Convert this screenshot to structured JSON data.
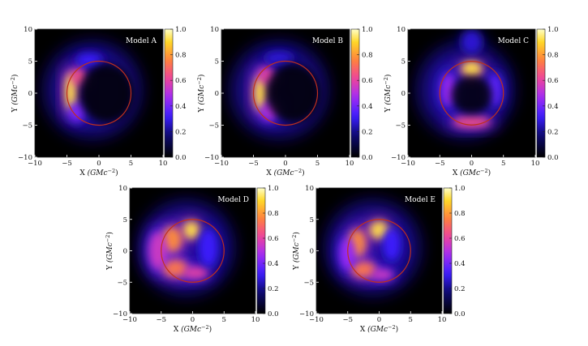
{
  "figure": {
    "type": "image-panels",
    "colormap": "gnuplot2 (black-blue-magenta-orange-yellow)",
    "ring_color": "#c0301c",
    "panels": [
      {
        "label": "Model A",
        "x_label_var": "X",
        "y_label_var": "Y",
        "axis_unit": "(GMc",
        "axis_unit_exp": "−2",
        "axis_unit_close": ")",
        "xlim": [
          -10,
          10
        ],
        "ylim": [
          -10,
          10
        ],
        "x_ticks": [
          "−10",
          "−5",
          "0",
          "5",
          "10"
        ],
        "y_ticks": [
          "10",
          "5",
          "0",
          "−5",
          "−10"
        ],
        "colorbar_ticks": [
          "1.0",
          "0.8",
          "0.6",
          "0.4",
          "0.2",
          "0.0"
        ],
        "ring_radius": 5,
        "emission": [
          {
            "x": -4.4,
            "y": 0.2,
            "rx": 0.9,
            "ry": 3.0,
            "level": 1.0
          },
          {
            "x": -3.2,
            "y": 2.6,
            "rx": 1.2,
            "ry": 1.4,
            "level": 0.7
          },
          {
            "x": -1.5,
            "y": 5.2,
            "rx": 2.0,
            "ry": 1.0,
            "level": 0.35
          },
          {
            "x": -3.5,
            "y": -3.0,
            "rx": 1.3,
            "ry": 1.5,
            "level": 0.45
          }
        ]
      },
      {
        "label": "Model B",
        "x_label_var": "X",
        "y_label_var": "Y",
        "axis_unit": "(GMc",
        "axis_unit_exp": "−2",
        "axis_unit_close": ")",
        "xlim": [
          -10,
          10
        ],
        "ylim": [
          -10,
          10
        ],
        "x_ticks": [
          "−10",
          "−5",
          "0",
          "5",
          "10"
        ],
        "y_ticks": [
          "10",
          "5",
          "0",
          "−5",
          "−10"
        ],
        "colorbar_ticks": [
          "1.0",
          "0.8",
          "0.6",
          "0.4",
          "0.2",
          "0.0"
        ],
        "ring_radius": 5,
        "emission": [
          {
            "x": -3.9,
            "y": 0.0,
            "rx": 1.0,
            "ry": 2.7,
            "level": 1.0
          },
          {
            "x": -3.0,
            "y": 2.8,
            "rx": 1.3,
            "ry": 1.4,
            "level": 0.65
          },
          {
            "x": -2.5,
            "y": -2.8,
            "rx": 1.4,
            "ry": 1.5,
            "level": 0.55
          },
          {
            "x": -1.0,
            "y": 5.5,
            "rx": 2.2,
            "ry": 1.0,
            "level": 0.3
          }
        ]
      },
      {
        "label": "Model C",
        "x_label_var": "X",
        "y_label_var": "Y",
        "axis_unit": "(GMc",
        "axis_unit_exp": "−2",
        "axis_unit_close": ")",
        "xlim": [
          -10,
          10
        ],
        "ylim": [
          -10,
          10
        ],
        "x_ticks": [
          "−10",
          "−5",
          "0",
          "5",
          "10"
        ],
        "y_ticks": [
          "10",
          "5",
          "0",
          "−5",
          "−10"
        ],
        "colorbar_ticks": [
          "1.0",
          "0.8",
          "0.6",
          "0.4",
          "0.2",
          "0.0"
        ],
        "ring_radius": 5,
        "emission": [
          {
            "x": 0.0,
            "y": 3.8,
            "rx": 1.6,
            "ry": 1.2,
            "level": 1.0
          },
          {
            "x": 0.0,
            "y": -4.5,
            "rx": 3.0,
            "ry": 0.9,
            "level": 0.7
          },
          {
            "x": -3.6,
            "y": 0.5,
            "rx": 1.2,
            "ry": 2.6,
            "level": 0.5
          },
          {
            "x": 3.6,
            "y": 0.5,
            "rx": 1.2,
            "ry": 2.6,
            "level": 0.4
          },
          {
            "x": 0.0,
            "y": 8.0,
            "rx": 1.6,
            "ry": 1.8,
            "level": 0.3
          }
        ]
      },
      {
        "label": "Model D",
        "x_label_var": "X",
        "y_label_var": "Y",
        "axis_unit": "(GMc",
        "axis_unit_exp": "−2",
        "axis_unit_close": ")",
        "xlim": [
          -10,
          10
        ],
        "ylim": [
          -10,
          10
        ],
        "x_ticks": [
          "−10",
          "−5",
          "0",
          "5",
          "10"
        ],
        "y_ticks": [
          "10",
          "5",
          "0",
          "−5",
          "−10"
        ],
        "colorbar_ticks": [
          "1.0",
          "0.8",
          "0.6",
          "0.4",
          "0.2",
          "0.0"
        ],
        "ring_radius": 5,
        "emission": [
          {
            "x": -0.2,
            "y": 3.3,
            "rx": 1.3,
            "ry": 1.4,
            "level": 1.0
          },
          {
            "x": -3.3,
            "y": 1.8,
            "rx": 1.6,
            "ry": 2.0,
            "level": 0.85
          },
          {
            "x": -2.8,
            "y": -2.8,
            "rx": 2.0,
            "ry": 1.4,
            "level": 0.8
          },
          {
            "x": 0.5,
            "y": -3.5,
            "rx": 2.0,
            "ry": 1.0,
            "level": 0.65
          },
          {
            "x": -5.5,
            "y": 0.0,
            "rx": 1.5,
            "ry": 3.0,
            "level": 0.6
          },
          {
            "x": 2.5,
            "y": 0.5,
            "rx": 1.5,
            "ry": 3.0,
            "level": 0.35
          }
        ]
      },
      {
        "label": "Model E",
        "x_label_var": "X",
        "y_label_var": "Y",
        "axis_unit": "(GMc",
        "axis_unit_exp": "−2",
        "axis_unit_close": ")",
        "xlim": [
          -10,
          10
        ],
        "ylim": [
          -10,
          10
        ],
        "x_ticks": [
          "−10",
          "−5",
          "0",
          "5",
          "10"
        ],
        "y_ticks": [
          "10",
          "5",
          "0",
          "−5",
          "−10"
        ],
        "colorbar_ticks": [
          "1.0",
          "0.8",
          "0.6",
          "0.4",
          "0.2",
          "0.0"
        ],
        "ring_radius": 5,
        "emission": [
          {
            "x": 0.0,
            "y": 3.3,
            "rx": 1.5,
            "ry": 1.4,
            "level": 1.0
          },
          {
            "x": -3.5,
            "y": 1.2,
            "rx": 1.4,
            "ry": 2.2,
            "level": 0.85
          },
          {
            "x": -2.5,
            "y": -3.0,
            "rx": 2.0,
            "ry": 1.3,
            "level": 0.8
          },
          {
            "x": 0.5,
            "y": -3.8,
            "rx": 1.8,
            "ry": 0.9,
            "level": 0.6
          },
          {
            "x": -5.0,
            "y": -0.5,
            "rx": 1.3,
            "ry": 2.5,
            "level": 0.5
          },
          {
            "x": 2.0,
            "y": 1.0,
            "rx": 1.4,
            "ry": 2.6,
            "level": 0.35
          }
        ]
      }
    ]
  }
}
